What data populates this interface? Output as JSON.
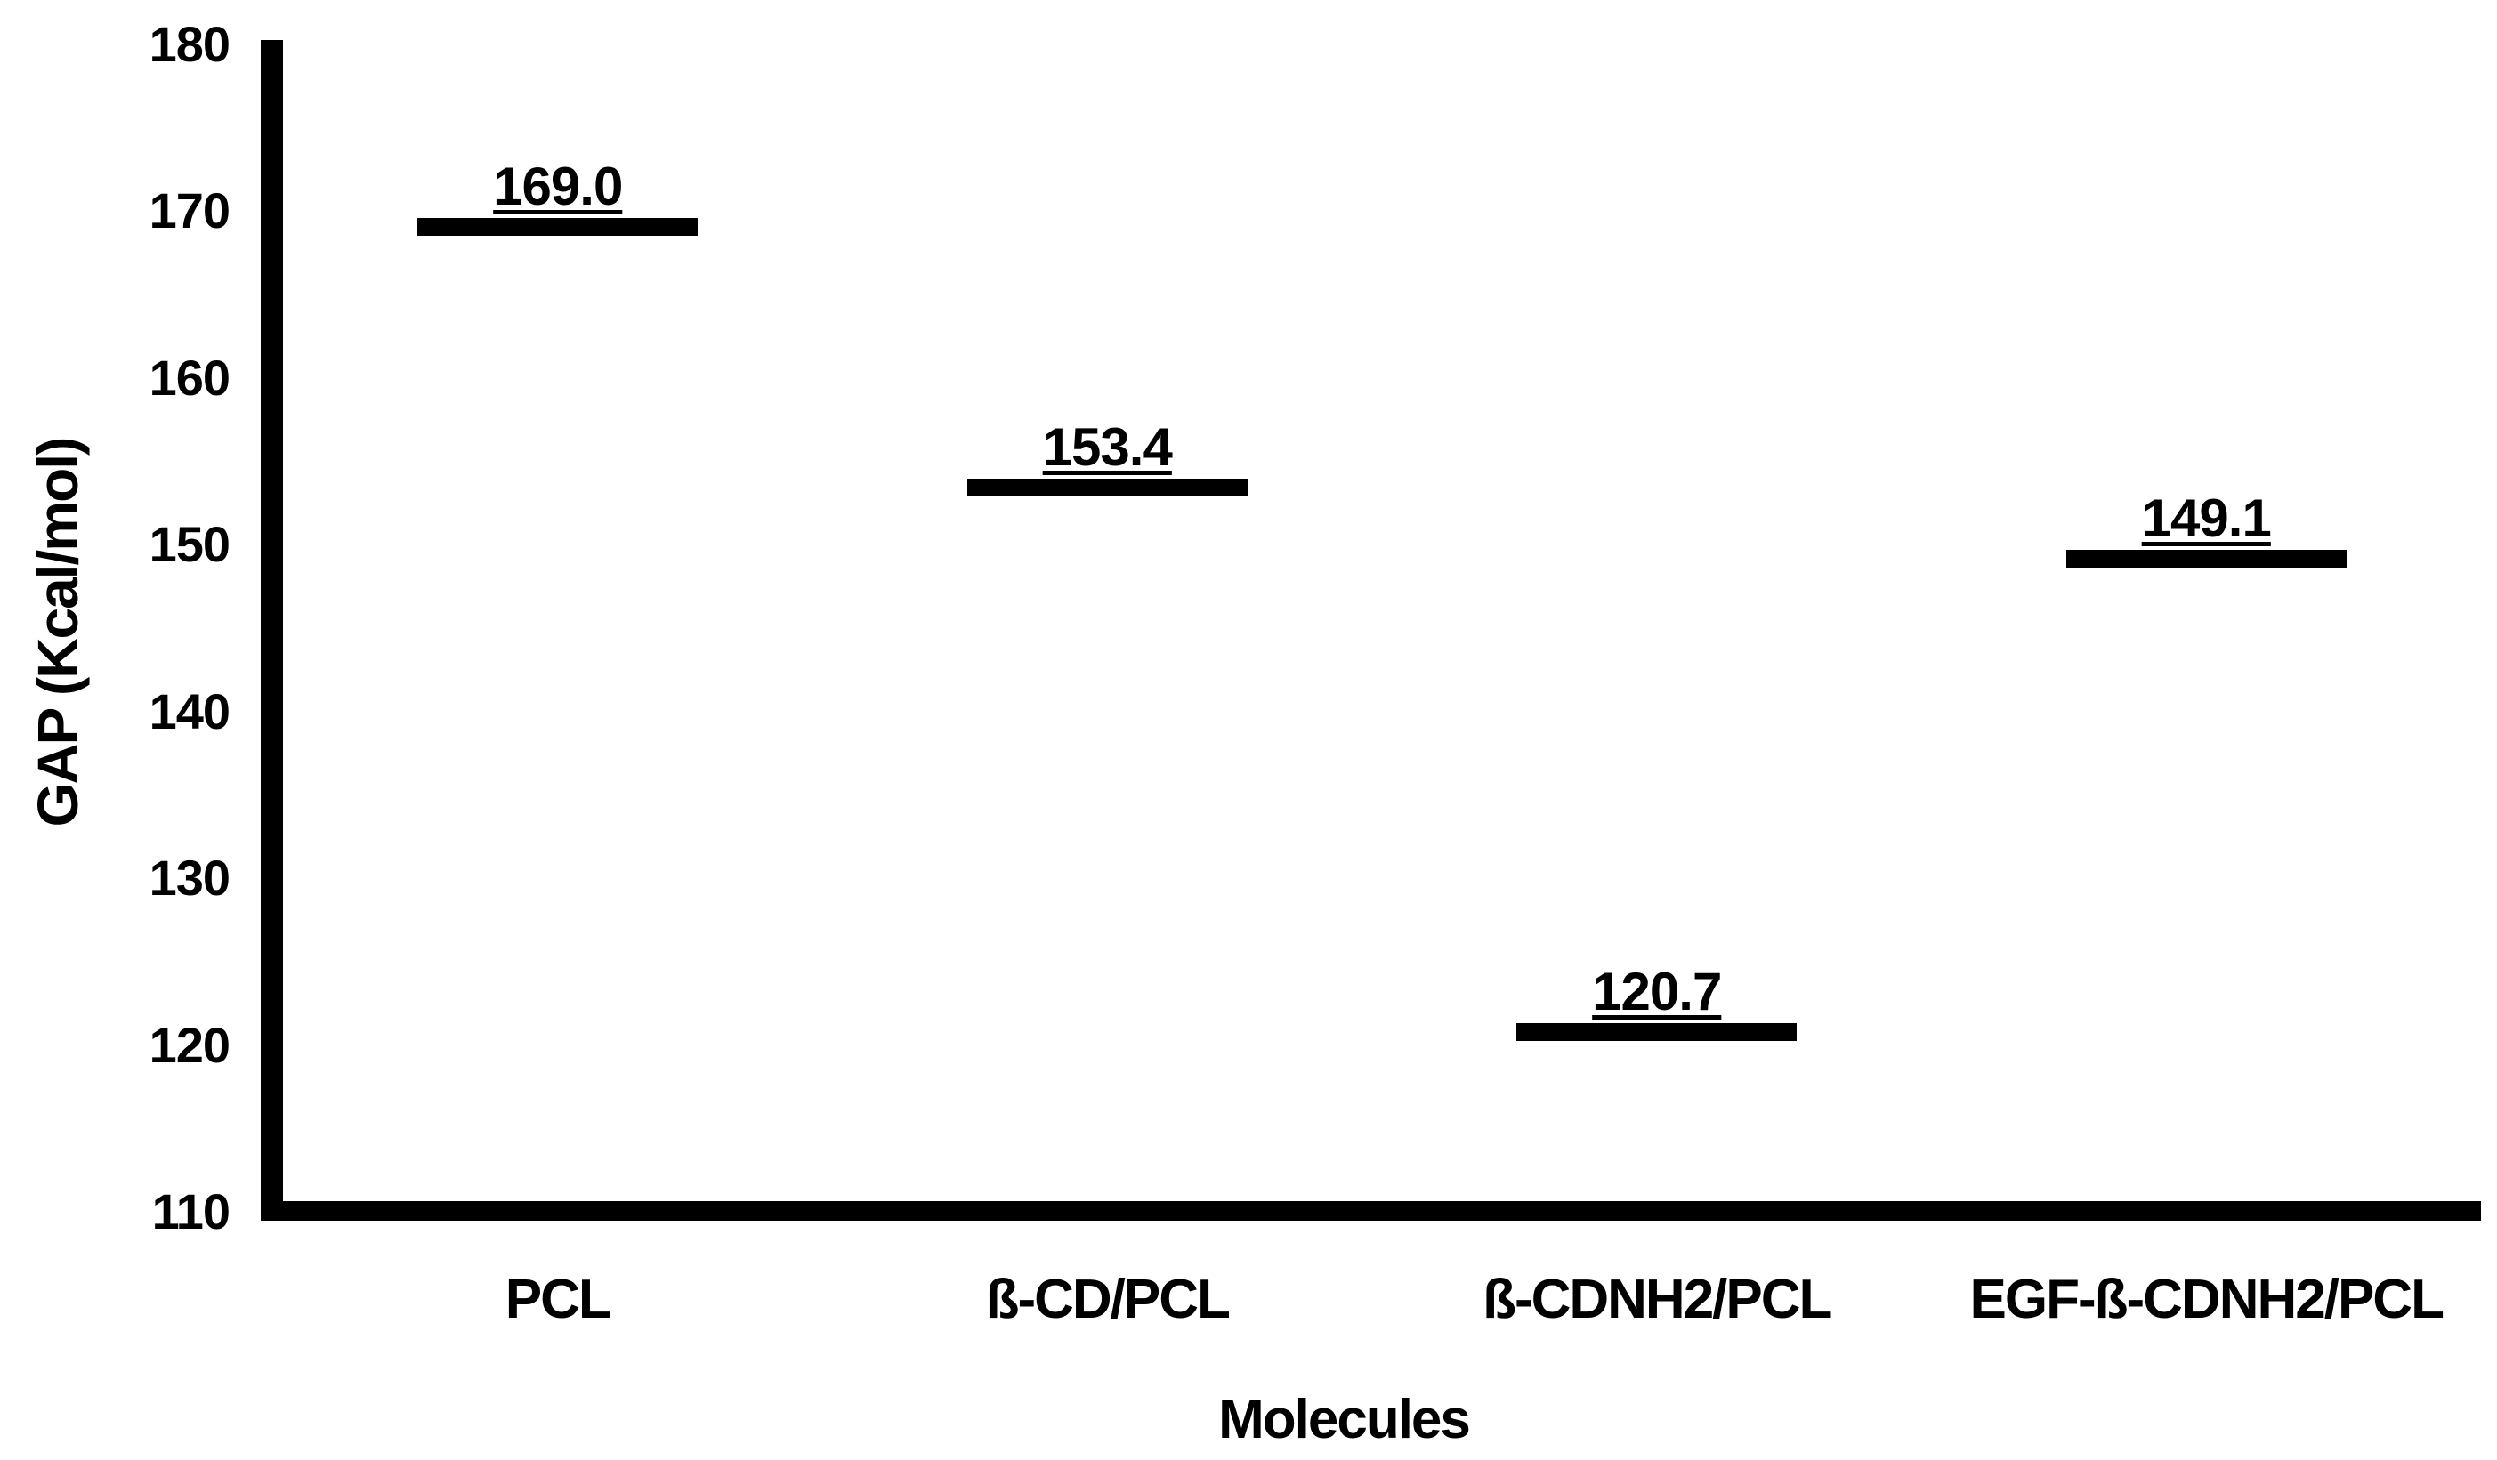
{
  "chart_data": {
    "type": "scatter",
    "marker": "thick-horizontal-dash",
    "categories": [
      "PCL",
      "ß-CD/PCL",
      "ß-CDNH2/PCL",
      "EGF-ß-CDNH2/PCL"
    ],
    "values": [
      169.0,
      153.4,
      120.7,
      149.1
    ],
    "value_labels": [
      "169.0",
      "153.4",
      "120.7",
      "149.1"
    ],
    "value_labels_underlined": true,
    "xlabel": "Molecules",
    "ylabel": "GAP (Kcal/mol)",
    "ylim": [
      110,
      180
    ],
    "yticks": [
      180,
      170,
      160,
      150,
      140,
      130,
      120,
      110
    ],
    "ytick_step": 10,
    "grid": false,
    "legend": false,
    "colors": {
      "foreground": "#000000",
      "background": "#ffffff",
      "axis": "#000000",
      "marker": "#000000"
    }
  }
}
